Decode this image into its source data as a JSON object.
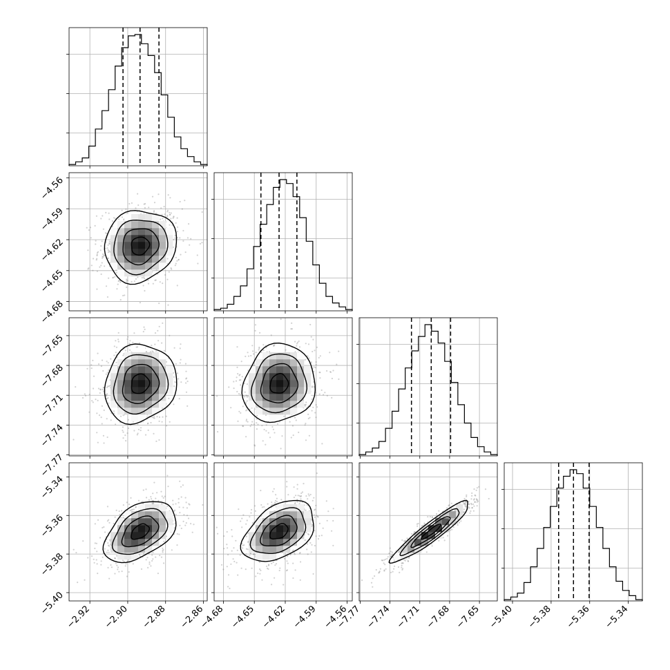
{
  "chart_data": {
    "type": "corner",
    "parameters": [
      {
        "ticks": [
          -2.92,
          -2.9,
          -2.88,
          -2.86
        ],
        "tick_labels": [
          "−2.92",
          "−2.90",
          "−2.88",
          "−2.86"
        ],
        "range": [
          -2.931,
          -2.858
        ],
        "median": -2.8935,
        "q16": -2.9025,
        "q84": -2.8835,
        "sigma": 0.0095
      },
      {
        "ticks": [
          -4.68,
          -4.65,
          -4.62,
          -4.59,
          -4.56
        ],
        "tick_labels": [
          "−4.68",
          "−4.65",
          "−4.62",
          "−4.59",
          "−4.56"
        ],
        "range": [
          -4.689,
          -4.555
        ],
        "median": -4.626,
        "q16": -4.6436,
        "q84": -4.6087,
        "sigma": 0.0175
      },
      {
        "ticks": [
          -7.77,
          -7.74,
          -7.71,
          -7.68,
          -7.65
        ],
        "tick_labels": [
          "−7.77",
          "−7.74",
          "−7.71",
          "−7.68",
          "−7.65"
        ],
        "range": [
          -7.771,
          -7.632
        ],
        "median": -7.6985,
        "q16": -7.7184,
        "q84": -7.679,
        "sigma": 0.0197
      },
      {
        "ticks": [
          -5.4,
          -5.38,
          -5.36,
          -5.34
        ],
        "tick_labels": [
          "−5.40",
          "−5.38",
          "−5.36",
          "−5.34"
        ],
        "range": [
          -5.4043,
          -5.3327
        ],
        "median": -5.3684,
        "q16": -5.3761,
        "q84": -5.3603,
        "sigma": 0.0079
      }
    ],
    "diagonal_histograms": [
      [
        0.01,
        0.03,
        0.06,
        0.15,
        0.28,
        0.42,
        0.58,
        0.76,
        0.9,
        0.99,
        1.0,
        0.93,
        0.84,
        0.71,
        0.54,
        0.37,
        0.22,
        0.13,
        0.07,
        0.03,
        0.01
      ],
      [
        0.01,
        0.02,
        0.05,
        0.11,
        0.19,
        0.32,
        0.49,
        0.66,
        0.81,
        0.94,
        1.0,
        0.97,
        0.87,
        0.71,
        0.53,
        0.35,
        0.21,
        0.11,
        0.06,
        0.03,
        0.01
      ],
      [
        0.01,
        0.03,
        0.06,
        0.11,
        0.21,
        0.34,
        0.51,
        0.67,
        0.8,
        0.91,
        1.0,
        0.95,
        0.86,
        0.72,
        0.56,
        0.39,
        0.25,
        0.14,
        0.07,
        0.03,
        0.01
      ],
      [
        0.01,
        0.03,
        0.06,
        0.14,
        0.26,
        0.4,
        0.56,
        0.72,
        0.86,
        0.95,
        1.0,
        0.97,
        0.86,
        0.72,
        0.56,
        0.4,
        0.26,
        0.15,
        0.08,
        0.04,
        0.01
      ]
    ],
    "correlations": [
      [
        0,
        1,
        0.1
      ],
      [
        0,
        2,
        0.12
      ],
      [
        1,
        2,
        0.1
      ],
      [
        0,
        3,
        0.45
      ],
      [
        1,
        3,
        0.42
      ],
      [
        2,
        3,
        0.93
      ]
    ],
    "grid": true,
    "histogram_gridlines": true
  }
}
